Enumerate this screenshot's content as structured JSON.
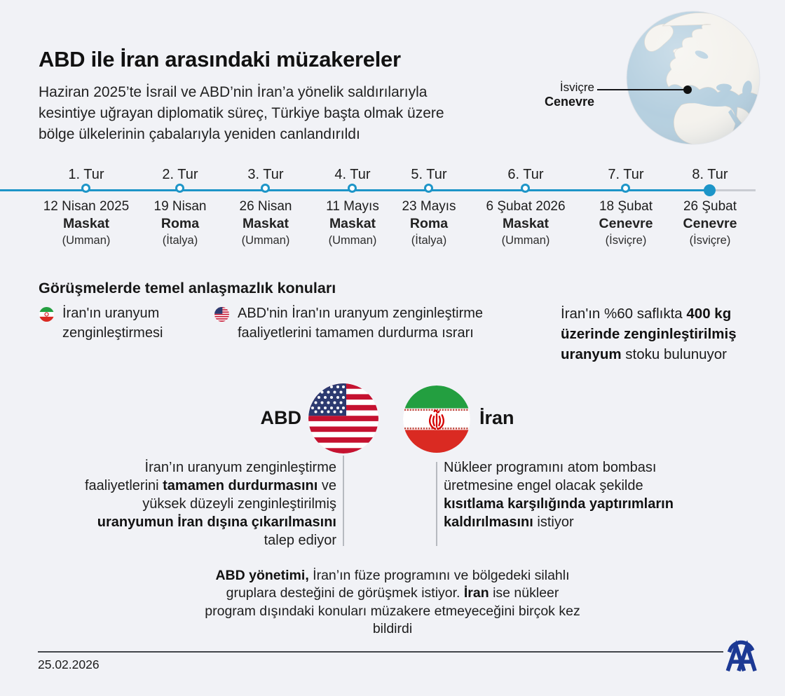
{
  "page": {
    "background": "#f1f2f6",
    "accent_blue": "#1d95c8",
    "logo_blue": "#1c3994",
    "iran_green": "#239f40",
    "iran_red": "#da2a22",
    "us_red": "#c51230",
    "us_navy": "#2c3a70"
  },
  "header": {
    "title": "ABD ile İran arasındaki müzakereler",
    "intro": "Haziran 2025’te İsrail ve ABD’nin İran’a yönelik saldırılarıyla kesintiye uğrayan diplomatik süreç, Türkiye başta olmak üzere bölge ülkelerinin çabalarıyla yeniden canlandırıldı"
  },
  "globe": {
    "icon": "globe-icon",
    "region": "İsviçre",
    "city": "Cenevre"
  },
  "timeline": {
    "rounds": [
      {
        "label": "1. Tur",
        "date": "12 Nisan 2025",
        "city": "Maskat",
        "country": "(Umman)",
        "current": false
      },
      {
        "label": "2. Tur",
        "date": "19 Nisan",
        "city": "Roma",
        "country": "(İtalya)",
        "current": false
      },
      {
        "label": "3. Tur",
        "date": "26 Nisan",
        "city": "Maskat",
        "country": "(Umman)",
        "current": false
      },
      {
        "label": "4. Tur",
        "date": "11 Mayıs",
        "city": "Maskat",
        "country": "(Umman)",
        "current": false
      },
      {
        "label": "5. Tur",
        "date": "23 Mayıs",
        "city": "Roma",
        "country": "(İtalya)",
        "current": false
      },
      {
        "label": "6. Tur",
        "date": "6 Şubat 2026",
        "city": "Maskat",
        "country": "(Umman)",
        "current": false
      },
      {
        "label": "7. Tur",
        "date": "18 Şubat",
        "city": "Cenevre",
        "country": "(İsviçre)",
        "current": false
      },
      {
        "label": "8. Tur",
        "date": "26 Şubat",
        "city": "Cenevre",
        "country": "(İsviçre)",
        "current": true
      }
    ]
  },
  "disputes": {
    "heading": "Görüşmelerde temel anlaşmazlık konuları",
    "iran_item": {
      "icon": "iran-flag-icon",
      "text": "İran'ın uranyum zenginleştirmesi"
    },
    "us_item": {
      "icon": "us-flag-icon",
      "text": "ABD'nin İran'ın uranyum zenginleştirme faaliyetlerini tamamen durdurma ısrarı"
    },
    "stock_note": [
      {
        "t": "İran'ın %60 saflıkta ",
        "b": false
      },
      {
        "t": "400 kg üzerinde zenginleştirilmiş uranyum",
        "b": true
      },
      {
        "t": " stoku bulunuyor",
        "b": false
      }
    ]
  },
  "positions": {
    "us_label": "ABD",
    "iran_label": "İran",
    "us_demand": [
      {
        "t": "İran’ın uranyum zenginleştirme faaliyetlerini ",
        "b": false
      },
      {
        "t": "tamamen durdurmasını",
        "b": true
      },
      {
        "t": " ve yüksek düzeyli zenginleştirilmiş ",
        "b": false
      },
      {
        "t": "uranyumun İran dışına çıkarılmasını",
        "b": true
      },
      {
        "t": " talep ediyor",
        "b": false
      }
    ],
    "iran_demand": [
      {
        "t": "Nükleer programını atom bombası üretmesine engel olacak şekilde ",
        "b": false
      },
      {
        "t": "kısıtlama karşılığında yaptırımların kaldırılmasını",
        "b": true
      },
      {
        "t": " istiyor",
        "b": false
      }
    ]
  },
  "footnote": [
    {
      "t": "ABD yönetimi,",
      "b": true
    },
    {
      "t": " İran’ın füze programını ve bölgedeki silahlı gruplara desteğini de görüşmek istiyor. ",
      "b": false
    },
    {
      "t": "İran",
      "b": true
    },
    {
      "t": " ise nükleer program dışındaki konuları müzakere etmeyeceğini birçok kez bildirdi",
      "b": false
    }
  ],
  "footer": {
    "date": "25.02.2026",
    "agency": "AA",
    "logo_icon": "aa-logo-icon"
  }
}
